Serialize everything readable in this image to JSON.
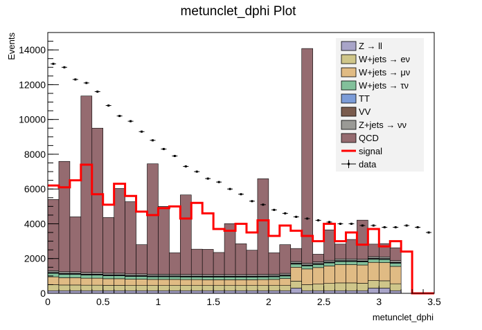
{
  "chart_data": {
    "type": "bar",
    "title": "metunclet_dphi Plot",
    "xlabel": "metunclet_dphi",
    "ylabel": "Events",
    "xlim": [
      0,
      3.5
    ],
    "ylim": [
      0,
      15000
    ],
    "xticks": [
      "0",
      "0.5",
      "1",
      "1.5",
      "2",
      "2.5",
      "3",
      "3.5"
    ],
    "yticks": [
      "0",
      "2000",
      "4000",
      "6000",
      "8000",
      "10000",
      "12000",
      "14000"
    ],
    "bin_width": 0.1,
    "n_bins": 35,
    "bin_lo": [
      0.0,
      0.1,
      0.2,
      0.3,
      0.4,
      0.5,
      0.6,
      0.7,
      0.8,
      0.9,
      1.0,
      1.1,
      1.2,
      1.3,
      1.4,
      1.5,
      1.6,
      1.7,
      1.8,
      1.9,
      2.0,
      2.1,
      2.2,
      2.3,
      2.4,
      2.5,
      2.6,
      2.7,
      2.8,
      2.9,
      3.0,
      3.1,
      3.2,
      3.3,
      3.4
    ],
    "grid": false,
    "legend_position": "top-right",
    "colors": {
      "Z_ll": "#a8a4c8",
      "W_enu": "#cfc68a",
      "W_munu": "#e0bb84",
      "W_taunu": "#82c09b",
      "TT": "#7c9cd8",
      "VV": "#7a5c4e",
      "Znunu": "#9a9a96",
      "QCD": "#956b70",
      "signal": "#ff0000",
      "data": "#000000",
      "legend_bg": "#f2f2f2"
    },
    "legend": [
      {
        "key": "Z_ll",
        "label": "Z → ll",
        "kind": "fill"
      },
      {
        "key": "W_enu",
        "label": "W+jets → eν",
        "kind": "fill"
      },
      {
        "key": "W_munu",
        "label": "W+jets → μν",
        "kind": "fill"
      },
      {
        "key": "W_taunu",
        "label": "W+jets → τν",
        "kind": "fill"
      },
      {
        "key": "TT",
        "label": "TT",
        "kind": "fill"
      },
      {
        "key": "VV",
        "label": "VV",
        "kind": "fill"
      },
      {
        "key": "Znunu",
        "label": "Z+jets → νν",
        "kind": "fill"
      },
      {
        "key": "QCD",
        "label": "QCD",
        "kind": "fill"
      },
      {
        "key": "signal",
        "label": "signal",
        "kind": "line"
      },
      {
        "key": "data",
        "label": "data",
        "kind": "marker"
      }
    ],
    "series": [
      {
        "name": "Z → ll",
        "key": "Z_ll",
        "values": [
          150,
          150,
          150,
          150,
          150,
          150,
          150,
          150,
          150,
          150,
          150,
          150,
          150,
          150,
          150,
          150,
          150,
          150,
          150,
          150,
          150,
          150,
          300,
          150,
          150,
          150,
          150,
          150,
          150,
          300,
          300,
          150,
          0,
          0,
          0
        ]
      },
      {
        "name": "W+jets → eν",
        "key": "W_enu",
        "values": [
          350,
          330,
          330,
          320,
          320,
          310,
          310,
          300,
          300,
          300,
          300,
          300,
          300,
          300,
          300,
          300,
          300,
          300,
          300,
          300,
          300,
          300,
          400,
          350,
          380,
          420,
          450,
          450,
          430,
          430,
          420,
          400,
          0,
          0,
          0
        ]
      },
      {
        "name": "W+jets → μν",
        "key": "W_munu",
        "values": [
          450,
          420,
          420,
          400,
          400,
          380,
          380,
          360,
          360,
          350,
          350,
          350,
          340,
          340,
          330,
          330,
          330,
          330,
          330,
          340,
          350,
          400,
          800,
          900,
          950,
          1000,
          1050,
          1050,
          1050,
          1050,
          1050,
          1000,
          0,
          0,
          0
        ]
      },
      {
        "name": "W+jets → τν",
        "key": "W_taunu",
        "values": [
          200,
          190,
          190,
          180,
          180,
          170,
          170,
          160,
          160,
          150,
          150,
          150,
          150,
          150,
          150,
          150,
          150,
          150,
          150,
          150,
          150,
          150,
          180,
          180,
          180,
          180,
          180,
          180,
          180,
          180,
          180,
          180,
          0,
          0,
          0
        ]
      },
      {
        "name": "TT",
        "key": "TT",
        "values": [
          30,
          30,
          30,
          30,
          30,
          30,
          30,
          30,
          30,
          30,
          30,
          30,
          30,
          30,
          30,
          30,
          30,
          30,
          30,
          30,
          30,
          30,
          30,
          30,
          30,
          30,
          30,
          30,
          30,
          30,
          30,
          30,
          0,
          0,
          0
        ]
      },
      {
        "name": "VV",
        "key": "VV",
        "values": [
          20,
          20,
          20,
          20,
          20,
          20,
          20,
          20,
          20,
          20,
          20,
          20,
          20,
          20,
          20,
          20,
          20,
          20,
          20,
          20,
          20,
          20,
          20,
          20,
          20,
          20,
          20,
          20,
          20,
          20,
          20,
          20,
          0,
          0,
          0
        ]
      },
      {
        "name": "Z+jets → νν",
        "key": "Znunu",
        "values": [
          100,
          100,
          100,
          100,
          100,
          100,
          100,
          100,
          100,
          100,
          100,
          100,
          100,
          100,
          100,
          100,
          100,
          100,
          100,
          100,
          100,
          100,
          100,
          100,
          100,
          100,
          100,
          100,
          100,
          100,
          100,
          100,
          0,
          0,
          0
        ]
      },
      {
        "name": "QCD",
        "key": "QCD",
        "values": [
          4100,
          6350,
          3160,
          10150,
          8300,
          3200,
          4870,
          4150,
          1680,
          6350,
          3900,
          1230,
          4570,
          1450,
          1450,
          1270,
          2930,
          1770,
          1400,
          5500,
          1230,
          1650,
          750,
          12350,
          440,
          1750,
          850,
          1120,
          2250,
          720,
          760,
          740,
          0,
          0,
          0
        ]
      }
    ],
    "signal": [
      6200,
      6100,
      6500,
      7400,
      5700,
      5100,
      6300,
      5600,
      4700,
      4500,
      4900,
      5000,
      4300,
      5200,
      4600,
      3700,
      3600,
      4000,
      3500,
      4200,
      3300,
      3900,
      3600,
      3300,
      3000,
      4000,
      3000,
      3500,
      2800,
      3700,
      2700,
      3000,
      2400,
      0,
      0
    ],
    "data": [
      13200,
      13000,
      12300,
      12100,
      11600,
      10800,
      10200,
      9900,
      9300,
      8800,
      8300,
      7900,
      7300,
      7000,
      6600,
      6400,
      6000,
      5700,
      5300,
      5100,
      4800,
      4600,
      4400,
      4300,
      4200,
      4100,
      4000,
      4000,
      3900,
      3900,
      3800,
      3800,
      3900,
      3800,
      3500
    ]
  }
}
